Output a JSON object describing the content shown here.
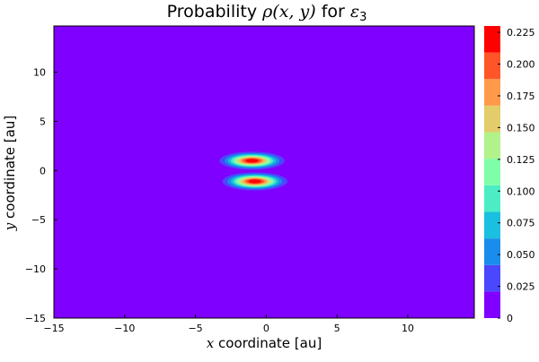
{
  "chart_data": {
    "type": "heatmap",
    "subtype": "filled-contour",
    "title": {
      "prefix": "Probability ",
      "math": "ρ(x, y)",
      "middle": " for ",
      "math_symbol": "ε",
      "math_subscript": "3"
    },
    "xlabel": {
      "math": "x",
      "text": " coordinate [au]"
    },
    "ylabel": {
      "math": "y",
      "text": " coordinate [au]"
    },
    "xlim": [
      -15,
      14.7
    ],
    "ylim": [
      -15,
      14.7
    ],
    "xticks": [
      -15,
      -10,
      -5,
      0,
      5,
      10
    ],
    "xtick_labels": [
      "−15",
      "−10",
      "−5",
      "0",
      "5",
      "10"
    ],
    "yticks": [
      -15,
      -10,
      -5,
      0,
      5,
      10
    ],
    "ytick_labels": [
      "−15",
      "−10",
      "−5",
      "0",
      "5",
      "10"
    ],
    "colorbar": {
      "min": 0,
      "max": 0.23,
      "ticks": [
        0,
        0.025,
        0.05,
        0.075,
        0.1,
        0.125,
        0.15,
        0.175,
        0.2,
        0.225
      ],
      "tick_labels": [
        "0",
        "0.025",
        "0.050",
        "0.075",
        "0.100",
        "0.125",
        "0.150",
        "0.175",
        "0.200",
        "0.225"
      ],
      "levels": [
        0,
        0.0209,
        0.0418,
        0.0627,
        0.0836,
        0.1045,
        0.1255,
        0.1464,
        0.1673,
        0.1882,
        0.2091,
        0.23
      ],
      "colors": [
        "#7f00ff",
        "#4b47fc",
        "#1a8ceb",
        "#1bbfe0",
        "#4cedc5",
        "#7ffda8",
        "#b2f28a",
        "#e2cd6a",
        "#ff9a4b",
        "#ff5629",
        "#ff0000"
      ]
    },
    "peaks": [
      {
        "label": "upper lobe",
        "x": -1.0,
        "y": 1.0,
        "value": 0.23,
        "sigma_x": 1.05,
        "sigma_y": 0.42
      },
      {
        "label": "lower lobe",
        "x": -0.8,
        "y": -1.1,
        "value": 0.23,
        "sigma_x": 1.05,
        "sigma_y": 0.42
      }
    ],
    "background_color": "#7f00ff",
    "grid": false,
    "legend": "none"
  }
}
